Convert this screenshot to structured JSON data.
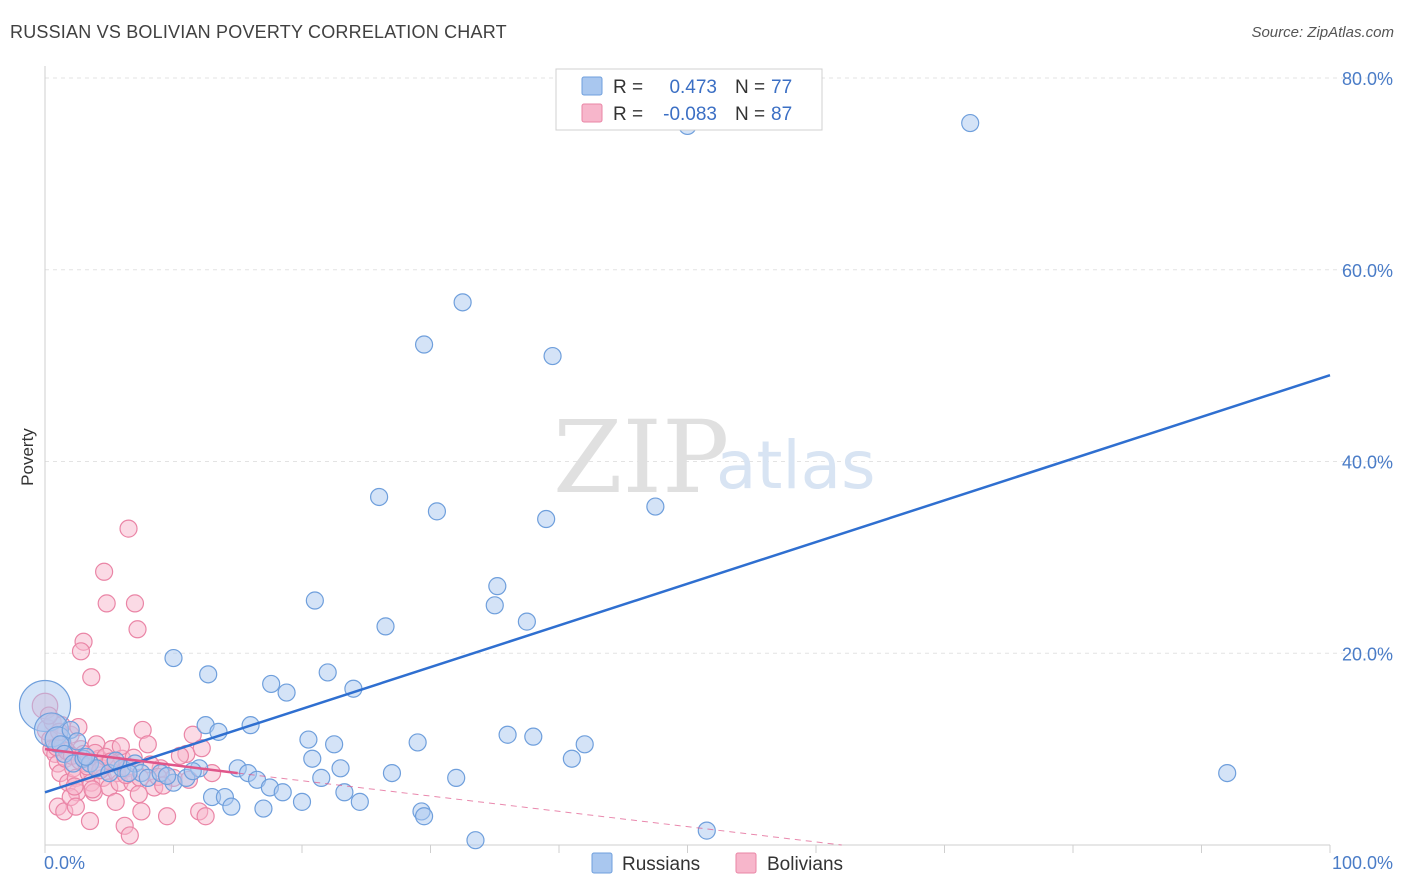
{
  "title": "RUSSIAN VS BOLIVIAN POVERTY CORRELATION CHART",
  "source": "Source: ZipAtlas.com",
  "watermark": {
    "zip": "ZIP",
    "atlas": "atlas"
  },
  "colors": {
    "russians_fill": "#a9c7ef",
    "russians_stroke": "#6f9fdc",
    "russians_line": "#2f6fd0",
    "bolivians_fill": "#f7b6cb",
    "bolivians_stroke": "#ea85a6",
    "bolivians_line": "#e0568a",
    "axis_text": "#4a7cc7",
    "grid": "#e3e3e3"
  },
  "legend": {
    "r_label": "R =",
    "n_label": "N =",
    "russians": {
      "r": "0.473",
      "n": "77"
    },
    "bolivians": {
      "r": "-0.083",
      "n": "87"
    }
  },
  "bottom_legend": {
    "russians": "Russians",
    "bolivians": "Bolivians"
  },
  "chart_data": {
    "type": "scatter",
    "xlabel": "",
    "ylabel": "Poverty",
    "xlim": [
      0,
      100
    ],
    "ylim": [
      0,
      80
    ],
    "x_tick_labels": [
      "0.0%",
      "100.0%"
    ],
    "y_ticks": [
      20,
      40,
      60,
      80
    ],
    "y_tick_labels": [
      "20.0%",
      "40.0%",
      "60.0%",
      "80.0%"
    ],
    "grid": true,
    "legend_position": "top-center",
    "series": [
      {
        "name": "Russians",
        "trend": {
          "x": [
            0,
            100
          ],
          "y": [
            5.5,
            49
          ]
        },
        "points": [
          [
            0,
            14.5,
            3
          ],
          [
            0.5,
            12,
            2
          ],
          [
            1,
            11,
            1.5
          ],
          [
            1.2,
            10.5,
            1
          ],
          [
            1.5,
            9.5,
            1
          ],
          [
            2,
            12,
            1
          ],
          [
            2.2,
            8.5,
            1
          ],
          [
            3,
            9,
            1
          ],
          [
            3.5,
            8.5,
            1
          ],
          [
            4,
            8,
            1
          ],
          [
            5,
            7.5,
            1
          ],
          [
            6,
            8,
            1
          ],
          [
            7,
            8.5,
            1
          ],
          [
            7.5,
            7.5,
            1
          ],
          [
            8,
            7,
            1
          ],
          [
            9,
            7.5,
            1
          ],
          [
            10,
            6.5,
            1
          ],
          [
            11,
            7,
            1
          ],
          [
            12,
            8,
            1
          ],
          [
            10,
            19.5,
            1
          ],
          [
            12.7,
            17.8,
            1
          ],
          [
            12.5,
            12.5,
            1
          ],
          [
            13.5,
            11.8,
            1
          ],
          [
            13,
            5,
            1
          ],
          [
            14,
            5,
            1
          ],
          [
            14.5,
            4,
            1
          ],
          [
            15,
            8,
            1
          ],
          [
            15.8,
            7.5,
            1
          ],
          [
            16,
            12.5,
            1
          ],
          [
            16.5,
            6.8,
            1
          ],
          [
            17,
            3.8,
            1
          ],
          [
            17.5,
            6,
            1
          ],
          [
            17.6,
            16.8,
            1
          ],
          [
            18.5,
            5.5,
            1
          ],
          [
            18.8,
            15.9,
            1
          ],
          [
            20,
            4.5,
            1
          ],
          [
            20.5,
            11,
            1
          ],
          [
            20.8,
            9,
            1
          ],
          [
            21,
            25.5,
            1
          ],
          [
            21.5,
            7,
            1
          ],
          [
            22,
            18,
            1
          ],
          [
            22.5,
            10.5,
            1
          ],
          [
            23,
            8,
            1
          ],
          [
            23.3,
            5.5,
            1
          ],
          [
            24,
            16.3,
            1
          ],
          [
            24.5,
            4.5,
            1
          ],
          [
            26,
            36.3,
            1
          ],
          [
            26.5,
            22.8,
            1
          ],
          [
            27,
            7.5,
            1
          ],
          [
            29,
            10.7,
            1
          ],
          [
            29.3,
            3.5,
            1
          ],
          [
            29.5,
            52.2,
            1
          ],
          [
            30.5,
            34.8,
            1
          ],
          [
            32,
            7,
            1
          ],
          [
            32.5,
            56.6,
            1
          ],
          [
            33.5,
            0.5,
            1
          ],
          [
            35,
            25,
            1
          ],
          [
            35.2,
            27,
            1
          ],
          [
            36,
            11.5,
            1
          ],
          [
            37.5,
            23.3,
            1
          ],
          [
            38,
            11.3,
            1
          ],
          [
            39,
            34,
            1
          ],
          [
            39.5,
            51,
            1
          ],
          [
            41,
            9,
            1
          ],
          [
            42,
            10.5,
            1
          ],
          [
            47.5,
            35.3,
            1
          ],
          [
            50,
            75,
            1
          ],
          [
            51.5,
            1.5,
            1
          ],
          [
            72,
            75.3,
            1
          ],
          [
            92,
            7.5,
            1
          ],
          [
            29.5,
            3,
            1
          ],
          [
            2.5,
            10.8,
            1
          ],
          [
            6.5,
            7.5,
            1
          ],
          [
            9.5,
            7.2,
            1
          ],
          [
            11.5,
            7.7,
            1
          ],
          [
            3.2,
            9.2,
            1
          ],
          [
            5.5,
            8.8,
            1
          ]
        ]
      },
      {
        "name": "Bolivians",
        "trend": {
          "x": [
            0,
            15
          ],
          "y": [
            10,
            7.5
          ]
        },
        "trend_dashed": {
          "x": [
            15,
            62
          ],
          "y": [
            7.5,
            0
          ]
        },
        "points": [
          [
            0,
            14.5,
            1.5
          ],
          [
            0.2,
            12,
            1.2
          ],
          [
            0.4,
            11,
            1
          ],
          [
            0.5,
            10,
            1
          ],
          [
            0.8,
            9.5,
            1
          ],
          [
            1,
            8.5,
            1
          ],
          [
            1.2,
            7.5,
            1
          ],
          [
            1.4,
            10.5,
            1
          ],
          [
            1.6,
            9,
            1
          ],
          [
            1.8,
            6.5,
            1
          ],
          [
            2,
            11.5,
            1
          ],
          [
            2.2,
            8,
            1
          ],
          [
            2.4,
            7,
            1
          ],
          [
            2.5,
            5.5,
            1
          ],
          [
            2.6,
            12.3,
            1
          ],
          [
            2.8,
            10,
            1
          ],
          [
            3,
            9.5,
            1
          ],
          [
            3.2,
            8.5,
            1
          ],
          [
            3.4,
            7.5,
            1
          ],
          [
            3.5,
            2.5,
            1
          ],
          [
            3.6,
            6.5,
            1
          ],
          [
            3.8,
            5.5,
            1
          ],
          [
            4,
            10.5,
            1
          ],
          [
            4.2,
            9,
            1
          ],
          [
            4.4,
            8,
            1
          ],
          [
            4.5,
            7,
            1
          ],
          [
            4.6,
            28.5,
            1
          ],
          [
            4.8,
            25.2,
            1
          ],
          [
            5,
            6,
            1
          ],
          [
            5.2,
            10,
            1
          ],
          [
            5.4,
            8.5,
            1
          ],
          [
            5.5,
            4.5,
            1
          ],
          [
            5.6,
            7.5,
            1
          ],
          [
            5.8,
            6.5,
            1
          ],
          [
            6,
            9,
            1
          ],
          [
            6.2,
            2,
            1
          ],
          [
            6.4,
            8,
            1
          ],
          [
            6.5,
            33,
            1
          ],
          [
            6.8,
            6.5,
            1
          ],
          [
            7,
            25.2,
            1
          ],
          [
            7.2,
            22.5,
            1
          ],
          [
            7.4,
            7,
            1
          ],
          [
            7.6,
            12,
            1
          ],
          [
            8,
            10.5,
            1
          ],
          [
            8.5,
            6,
            1
          ],
          [
            9,
            8,
            1
          ],
          [
            9.5,
            3,
            1
          ],
          [
            10,
            7,
            1
          ],
          [
            11,
            9.5,
            1
          ],
          [
            11.5,
            11.5,
            1
          ],
          [
            12,
            3.5,
            1
          ],
          [
            12.5,
            3,
            1
          ],
          [
            13,
            7.5,
            1
          ],
          [
            3,
            21.2,
            1
          ],
          [
            2.8,
            20.2,
            1
          ],
          [
            3.6,
            17.5,
            1
          ],
          [
            1,
            4,
            1
          ],
          [
            1.5,
            3.5,
            1
          ],
          [
            2,
            5,
            1
          ],
          [
            2.4,
            4,
            1
          ],
          [
            6.6,
            1,
            1
          ],
          [
            7.5,
            3.5,
            1
          ],
          [
            0.6,
            12.8,
            1
          ],
          [
            1.3,
            12.5,
            1
          ],
          [
            0.9,
            10.2,
            1
          ],
          [
            1.7,
            9.8,
            1
          ],
          [
            2.1,
            9.3,
            1
          ],
          [
            2.7,
            8.8,
            1
          ],
          [
            3.3,
            8.2,
            1
          ],
          [
            3.9,
            9.6,
            1
          ],
          [
            4.3,
            7.8,
            1
          ],
          [
            4.7,
            9.2,
            1
          ],
          [
            5.1,
            8.7,
            1
          ],
          [
            5.9,
            10.3,
            1
          ],
          [
            6.3,
            7.3,
            1
          ],
          [
            6.9,
            9.1,
            1
          ],
          [
            7.3,
            5.3,
            1
          ],
          [
            8.2,
            8.4,
            1
          ],
          [
            8.8,
            7.1,
            1
          ],
          [
            9.2,
            6.2,
            1
          ],
          [
            10.5,
            9.3,
            1
          ],
          [
            11.2,
            6.8,
            1
          ],
          [
            12.2,
            10.1,
            1
          ],
          [
            0.3,
            13.5,
            1
          ],
          [
            1.1,
            11.8,
            1
          ],
          [
            2.3,
            6.1,
            1
          ],
          [
            3.7,
            5.8,
            1
          ]
        ]
      }
    ]
  }
}
